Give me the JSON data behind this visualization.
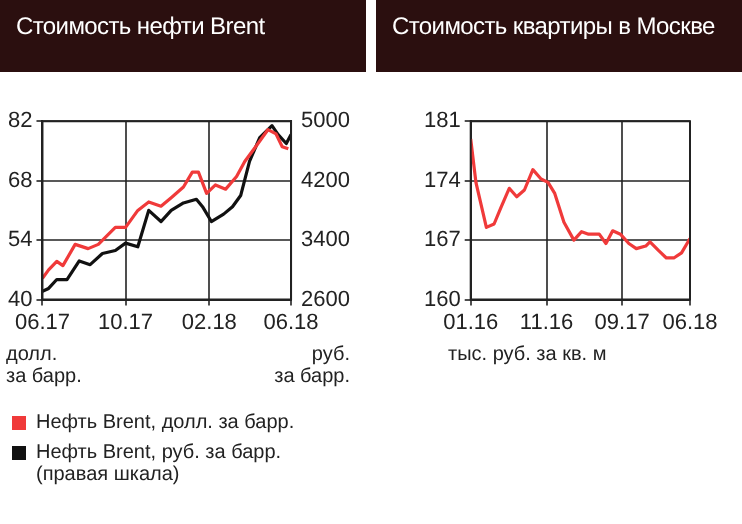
{
  "chart_data": [
    {
      "type": "line",
      "title": "Стоимость нефти Brent",
      "ylabel": "долл.\nза барр.",
      "y2label": "руб.\nза барр.",
      "xlim": [
        "2017-06",
        "2018-06"
      ],
      "xticks": [
        {
          "value": "2017-06",
          "label": "06.17"
        },
        {
          "value": "2017-10",
          "label": "10.17"
        },
        {
          "value": "2018-02",
          "label": "02.18"
        },
        {
          "value": "2018-06",
          "label": "06.18"
        }
      ],
      "ylim": [
        40,
        82
      ],
      "yticks": [
        40,
        54,
        68,
        82
      ],
      "y2lim": [
        2600,
        5000
      ],
      "y2ticks": [
        2600,
        3400,
        4200,
        5000
      ],
      "grid": true,
      "legend": "bottom",
      "marker": "none",
      "line_style": "solid",
      "series": [
        {
          "name": "Нефть Brent, долл. за барр.",
          "color": "#f03a3a",
          "x": [
            "2017-06-01",
            "2017-06-10",
            "2017-06-22",
            "2017-07-01",
            "2017-07-19",
            "2017-08-07",
            "2017-08-22",
            "2017-09-16",
            "2017-10-01",
            "2017-10-19",
            "2017-11-04",
            "2017-11-22",
            "2017-12-07",
            "2017-12-25",
            "2018-01-07",
            "2018-01-16",
            "2018-01-28",
            "2018-02-10",
            "2018-02-25",
            "2018-03-13",
            "2018-03-25",
            "2018-04-10",
            "2018-04-28",
            "2018-05-10",
            "2018-05-19",
            "2018-05-28"
          ],
          "values": [
            45,
            47,
            49,
            48,
            53,
            52,
            53,
            57,
            57,
            61,
            63,
            62,
            64,
            66.5,
            70,
            70,
            65,
            67,
            66,
            69,
            72.5,
            76,
            80,
            79,
            76,
            75.5
          ]
        },
        {
          "name": "Нефть Brent, руб. за барр. (правая шкала)",
          "color": "#111111",
          "axis": "y2",
          "x": [
            "2017-06-01",
            "2017-06-10",
            "2017-06-22",
            "2017-07-07",
            "2017-07-25",
            "2017-08-10",
            "2017-08-28",
            "2017-09-16",
            "2017-10-01",
            "2017-10-19",
            "2017-11-04",
            "2017-11-22",
            "2017-12-07",
            "2017-12-25",
            "2018-01-13",
            "2018-01-22",
            "2018-02-04",
            "2018-02-22",
            "2018-03-07",
            "2018-03-19",
            "2018-04-01",
            "2018-04-16",
            "2018-05-04",
            "2018-05-13",
            "2018-05-25",
            "2018-06-01"
          ],
          "values": [
            2710,
            2750,
            2870,
            2870,
            3120,
            3070,
            3220,
            3260,
            3360,
            3310,
            3800,
            3650,
            3800,
            3900,
            3950,
            3850,
            3650,
            3750,
            3850,
            4000,
            4460,
            4780,
            4940,
            4820,
            4700,
            4820
          ]
        }
      ]
    },
    {
      "type": "line",
      "title": "Стоимость квартиры в Москве",
      "ylabel": "тыс. руб. за кв. м",
      "xlim": [
        "2016-01",
        "2018-06"
      ],
      "xticks": [
        {
          "value": "2016-01",
          "label": "01.16"
        },
        {
          "value": "2016-11",
          "label": "11.16"
        },
        {
          "value": "2017-09",
          "label": "09.17"
        },
        {
          "value": "2018-06",
          "label": "06.18"
        }
      ],
      "ylim": [
        160,
        181
      ],
      "yticks": [
        160,
        167,
        174,
        181
      ],
      "grid": true,
      "marker": "none",
      "line_style": "solid",
      "series": [
        {
          "color": "#f03a3a",
          "x": [
            "2016-01-01",
            "2016-01-22",
            "2016-03-04",
            "2016-04-04",
            "2016-05-01",
            "2016-06-04",
            "2016-07-04",
            "2016-08-04",
            "2016-09-07",
            "2016-10-10",
            "2016-11-07",
            "2016-12-04",
            "2017-01-10",
            "2017-02-19",
            "2017-03-22",
            "2017-04-19",
            "2017-06-01",
            "2017-06-28",
            "2017-07-25",
            "2017-08-25",
            "2017-09-28",
            "2017-10-28",
            "2017-12-05",
            "2017-12-22",
            "2018-01-25",
            "2018-02-26",
            "2018-03-28",
            "2018-04-28",
            "2018-06-01"
          ],
          "values": [
            178.9,
            173.8,
            168.5,
            168.9,
            170.8,
            173.1,
            172.1,
            172.9,
            175.3,
            174.2,
            173.8,
            172.5,
            169.1,
            167,
            168,
            167.7,
            167.7,
            166.6,
            168.1,
            167.7,
            166.6,
            166,
            166.3,
            166.8,
            165.8,
            164.9,
            164.9,
            165.5,
            167.2
          ]
        }
      ]
    }
  ]
}
